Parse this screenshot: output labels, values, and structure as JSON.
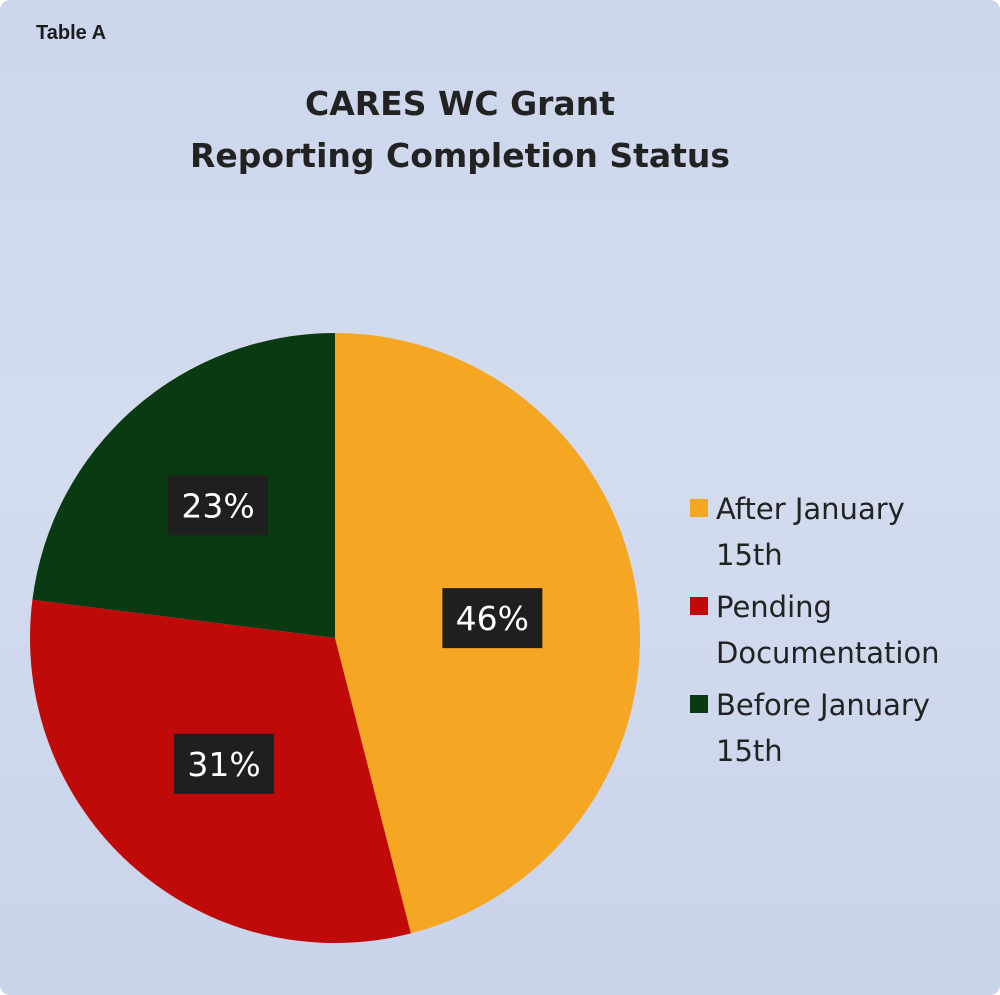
{
  "table_label": "Table A",
  "chart_data": {
    "type": "pie",
    "title_lines": [
      "CARES WC Grant",
      "Reporting Completion Status"
    ],
    "slices": [
      {
        "name": "After January 15th",
        "legend_lines": [
          "After January",
          "15th"
        ],
        "value": 46,
        "label": "46%",
        "color": "#F5A623"
      },
      {
        "name": "Pending Documentation",
        "legend_lines": [
          "Pending",
          "Documentation"
        ],
        "value": 31,
        "label": "31%",
        "color": "#C00A0A"
      },
      {
        "name": "Before January 15th",
        "legend_lines": [
          "Before January",
          "15th"
        ],
        "value": 23,
        "label": "23%",
        "color": "#0A3A12"
      }
    ],
    "legend_position": "right",
    "start_angle_deg": 0,
    "direction": "clockwise"
  }
}
